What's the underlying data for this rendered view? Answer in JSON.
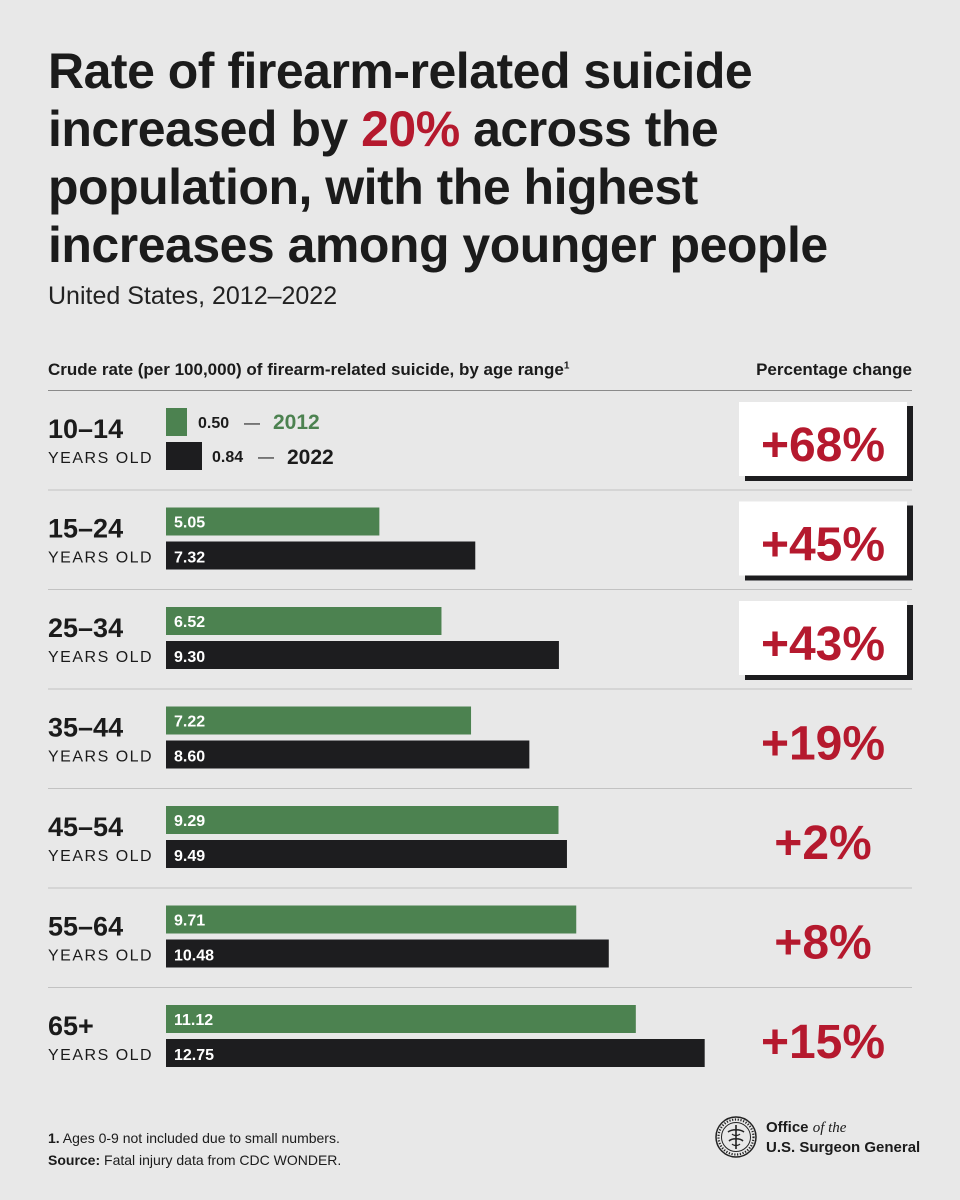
{
  "header": {
    "title_pre": "Rate of firearm-related suicide increased by ",
    "title_highlight": "20%",
    "title_post": " across the population, with the highest increases among younger people",
    "subtitle": "United States, 2012–2022"
  },
  "columns": {
    "left_label": "Crude rate (per 100,000) of firearm-related suicide, by age range",
    "left_footnote_marker": "1",
    "right_label": "Percentage change"
  },
  "legend": {
    "year_2012": "2012",
    "year_2022": "2022",
    "dash": "—"
  },
  "row_sublabel": "YEARS OLD",
  "colors": {
    "bar_2012": "#4c8250",
    "bar_2022": "#1d1d1f",
    "accent": "#b5192e",
    "background": "#e8e8e8"
  },
  "chart_data": {
    "type": "bar",
    "orientation": "horizontal",
    "title": "Rate of firearm-related suicide increased by 20% across the population, with the highest increases among younger people",
    "subtitle": "United States, 2012–2022",
    "categories": [
      "10–14",
      "15–24",
      "25–34",
      "35–44",
      "45–54",
      "55–64",
      "65+"
    ],
    "series": [
      {
        "name": "2012",
        "values": [
          0.5,
          5.05,
          6.52,
          7.22,
          9.29,
          9.71,
          11.12
        ]
      },
      {
        "name": "2022",
        "values": [
          0.84,
          7.32,
          9.3,
          8.6,
          9.49,
          10.48,
          12.75
        ]
      }
    ],
    "value_labels_2012": [
      "0.50",
      "5.05",
      "6.52",
      "7.22",
      "9.29",
      "9.71",
      "11.12"
    ],
    "value_labels_2022": [
      "0.84",
      "7.32",
      "9.30",
      "8.60",
      "9.49",
      "10.48",
      "12.75"
    ],
    "percent_change": [
      "+68%",
      "+45%",
      "+43%",
      "+19%",
      "+2%",
      "+8%",
      "+15%"
    ],
    "highlighted": [
      true,
      true,
      true,
      false,
      false,
      false,
      false
    ],
    "xlim": [
      0,
      13.0
    ],
    "grid": false
  },
  "footer": {
    "note_marker": "1.",
    "note": " Ages 0-9 not included due to small numbers.",
    "source_label": "Source:",
    "source": " Fatal injury data from CDC WONDER."
  },
  "logo": {
    "line1": "Office",
    "line1_italic": "of the",
    "line2": "U.S. Surgeon General",
    "icon": "surgeon-general-seal-icon"
  }
}
